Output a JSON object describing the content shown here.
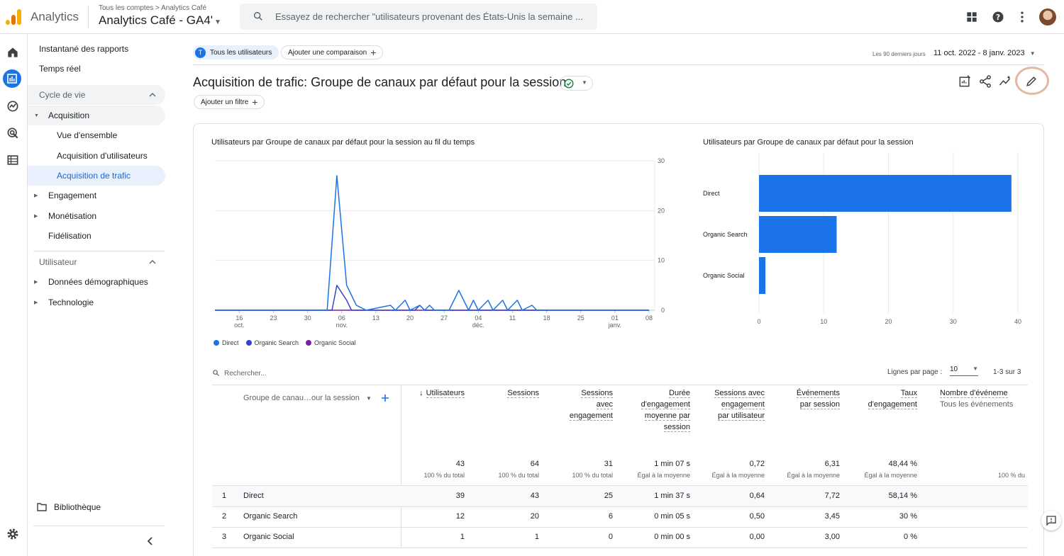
{
  "header": {
    "product_name": "Analytics",
    "account_crumb": "Tous les comptes > Analytics Café",
    "property_name": "Analytics Café - GA4'",
    "search_placeholder": "Essayez de rechercher \"utilisateurs provenant des États-Unis la semaine ...",
    "icons": [
      "apps-grid-icon",
      "help-icon",
      "more-vert-icon",
      "avatar"
    ]
  },
  "rail": [
    "home-icon",
    "reports-icon",
    "explore-icon",
    "advertising-icon",
    "configure-icon",
    "settings-icon"
  ],
  "sidenav": {
    "snapshot": "Instantané des rapports",
    "realtime": "Temps réel",
    "lifecycle": "Cycle de vie",
    "acquisition": "Acquisition",
    "overview": "Vue d'ensemble",
    "user_acquisition": "Acquisition d'utilisateurs",
    "traffic_acquisition": "Acquisition de trafic",
    "engagement": "Engagement",
    "monetization": "Monétisation",
    "retention": "Fidélisation",
    "user": "Utilisateur",
    "demographics": "Données démographiques",
    "tech": "Technologie",
    "library": "Bibliothèque"
  },
  "main": {
    "chip_users_letter": "T",
    "chip_users": "Tous les utilisateurs",
    "chip_compare": "Ajouter une comparaison",
    "date_label": "Les 90 derniers jours",
    "date_range": "11 oct. 2022 - 8 janv. 2023",
    "title": "Acquisition de trafic: Groupe de canaux par défaut pour la session",
    "add_filter": "Ajouter un filtre"
  },
  "chart_data": [
    {
      "type": "line",
      "title": "Utilisateurs par Groupe de canaux par défaut pour la session au fil du temps",
      "x_ticks": [
        {
          "day": "16",
          "month": "oct."
        },
        {
          "day": "23",
          "month": ""
        },
        {
          "day": "30",
          "month": ""
        },
        {
          "day": "06",
          "month": "nov."
        },
        {
          "day": "13",
          "month": ""
        },
        {
          "day": "20",
          "month": ""
        },
        {
          "day": "27",
          "month": ""
        },
        {
          "day": "04",
          "month": "déc."
        },
        {
          "day": "11",
          "month": ""
        },
        {
          "day": "18",
          "month": ""
        },
        {
          "day": "25",
          "month": ""
        },
        {
          "day": "01",
          "month": "janv."
        },
        {
          "day": "08",
          "month": ""
        }
      ],
      "y_ticks": [
        "30",
        "20",
        "10",
        "0"
      ],
      "ylim": [
        0,
        30
      ],
      "x_start": "2022-10-11",
      "series": [
        {
          "name": "Direct",
          "color": "#1a73e8",
          "points": [
            [
              0,
              0
            ],
            [
              23,
              0
            ],
            [
              25,
              27
            ],
            [
              27,
              5
            ],
            [
              29,
              1
            ],
            [
              31,
              0
            ],
            [
              36,
              1
            ],
            [
              37,
              0
            ],
            [
              39,
              2
            ],
            [
              40,
              0
            ],
            [
              42,
              1
            ],
            [
              43,
              0
            ],
            [
              44,
              1
            ],
            [
              45,
              0
            ],
            [
              48,
              0
            ],
            [
              50,
              4
            ],
            [
              52,
              0
            ],
            [
              53,
              2
            ],
            [
              54,
              0
            ],
            [
              56,
              2
            ],
            [
              57,
              0
            ],
            [
              59,
              2
            ],
            [
              60,
              0
            ],
            [
              62,
              2
            ],
            [
              63,
              0
            ],
            [
              65,
              1
            ],
            [
              66,
              0
            ],
            [
              89,
              0
            ]
          ]
        },
        {
          "name": "Organic Search",
          "color": "#3b3fcf",
          "points": [
            [
              0,
              0
            ],
            [
              24,
              0
            ],
            [
              25,
              5
            ],
            [
              27,
              2
            ],
            [
              28,
              0
            ],
            [
              41,
              0
            ],
            [
              42,
              1
            ],
            [
              43,
              0
            ],
            [
              89,
              0
            ]
          ]
        },
        {
          "name": "Organic Social",
          "color": "#7b1fa2",
          "points": [
            [
              0,
              0
            ],
            [
              89,
              0
            ]
          ]
        }
      ]
    },
    {
      "type": "bar",
      "title": "Utilisateurs par Groupe de canaux par défaut pour la session",
      "categories": [
        "Direct",
        "Organic Search",
        "Organic Social"
      ],
      "values": [
        39,
        12,
        1
      ],
      "x_ticks": [
        "0",
        "10",
        "20",
        "30",
        "40"
      ],
      "xlim": [
        0,
        40
      ],
      "color": "#1a73e8"
    }
  ],
  "table": {
    "search_placeholder": "Rechercher...",
    "rows_per_page_label": "Lignes par page :",
    "rows_per_page": "10",
    "pager": "1-3 sur 3",
    "dimension_header": "Groupe de canau…our la session",
    "columns": [
      {
        "label": "Utilisateurs",
        "total": "43",
        "sub": "100 % du total"
      },
      {
        "label": "Sessions",
        "total": "64",
        "sub": "100 % du total"
      },
      {
        "label": "Sessions avec engagement",
        "total": "31",
        "sub": "100 % du total"
      },
      {
        "label": "Durée d'engagement moyenne par session",
        "total": "1 min 07 s",
        "sub": "Égal à la moyenne"
      },
      {
        "label": "Sessions avec engagement par utilisateur",
        "total": "0,72",
        "sub": "Égal à la moyenne"
      },
      {
        "label": "Événements par session",
        "total": "6,31",
        "sub": "Égal à la moyenne"
      },
      {
        "label": "Taux d'engagement",
        "total": "48,44 %",
        "sub": "Égal à la moyenne"
      },
      {
        "label": "Nombre d'événeme",
        "extra": "Tous les événements",
        "total": "",
        "sub": "100 % du"
      }
    ],
    "rows": [
      {
        "idx": "1",
        "name": "Direct",
        "cells": [
          "39",
          "43",
          "25",
          "1 min 37 s",
          "0,64",
          "7,72",
          "58,14 %"
        ]
      },
      {
        "idx": "2",
        "name": "Organic Search",
        "cells": [
          "12",
          "20",
          "6",
          "0 min 05 s",
          "0,50",
          "3,45",
          "30 %"
        ]
      },
      {
        "idx": "3",
        "name": "Organic Social",
        "cells": [
          "1",
          "1",
          "0",
          "0 min 00 s",
          "0,00",
          "3,00",
          "0 %"
        ]
      }
    ]
  }
}
